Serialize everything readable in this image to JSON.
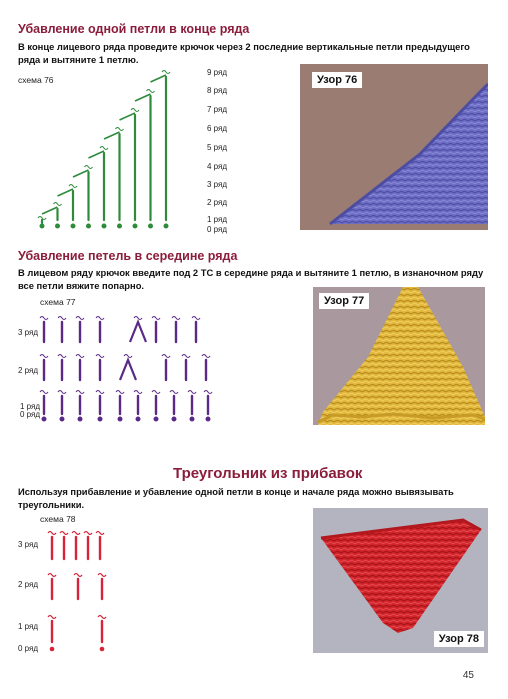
{
  "sections": [
    {
      "title": "Убавление одной петли в конце ряда",
      "text": "В конце лицевого ряда проведите крючок через 2 последние вертикальные петли предыдущего ряда и вытяните 1 петлю.",
      "scheme_label": "схема 76",
      "rows": [
        "9 ряд",
        "8 ряд",
        "7 ряд",
        "6 ряд",
        "5 ряд",
        "4 ряд",
        "3 ряд",
        "2 ряд",
        "1 ряд",
        "0 ряд"
      ],
      "photo_label": "Узор 76"
    },
    {
      "title": "Убавление петель в середине ряда",
      "text": "В лицевом ряду крючок введите под 2 ТС в середине ряда и вытяните 1 петлю, в изнаночном ряду все петли вяжите попарно.",
      "scheme_label": "схема 77",
      "rows": [
        "3 ряд",
        "2 ряд",
        "1 ряд",
        "0 ряд"
      ],
      "photo_label": "Узор 77"
    },
    {
      "title": "Треугольник из прибавок",
      "text": "Используя прибавление и убавление одной петли в конце и начале ряда можно вывязывать треугольники.",
      "scheme_label": "схема 78",
      "rows": [
        "3 ряд",
        "2 ряд",
        "1 ряд",
        "0 ряд"
      ],
      "photo_label": "Узор 78"
    }
  ],
  "page_number": "45",
  "colors": {
    "heading": "#8b1d3c",
    "scheme76": "#2e8b3c",
    "scheme77": "#5b2a86",
    "scheme78": "#d8243a",
    "yarn76": "#6e6fc4",
    "yarn77": "#e2b93c",
    "yarn78": "#d3262c"
  }
}
